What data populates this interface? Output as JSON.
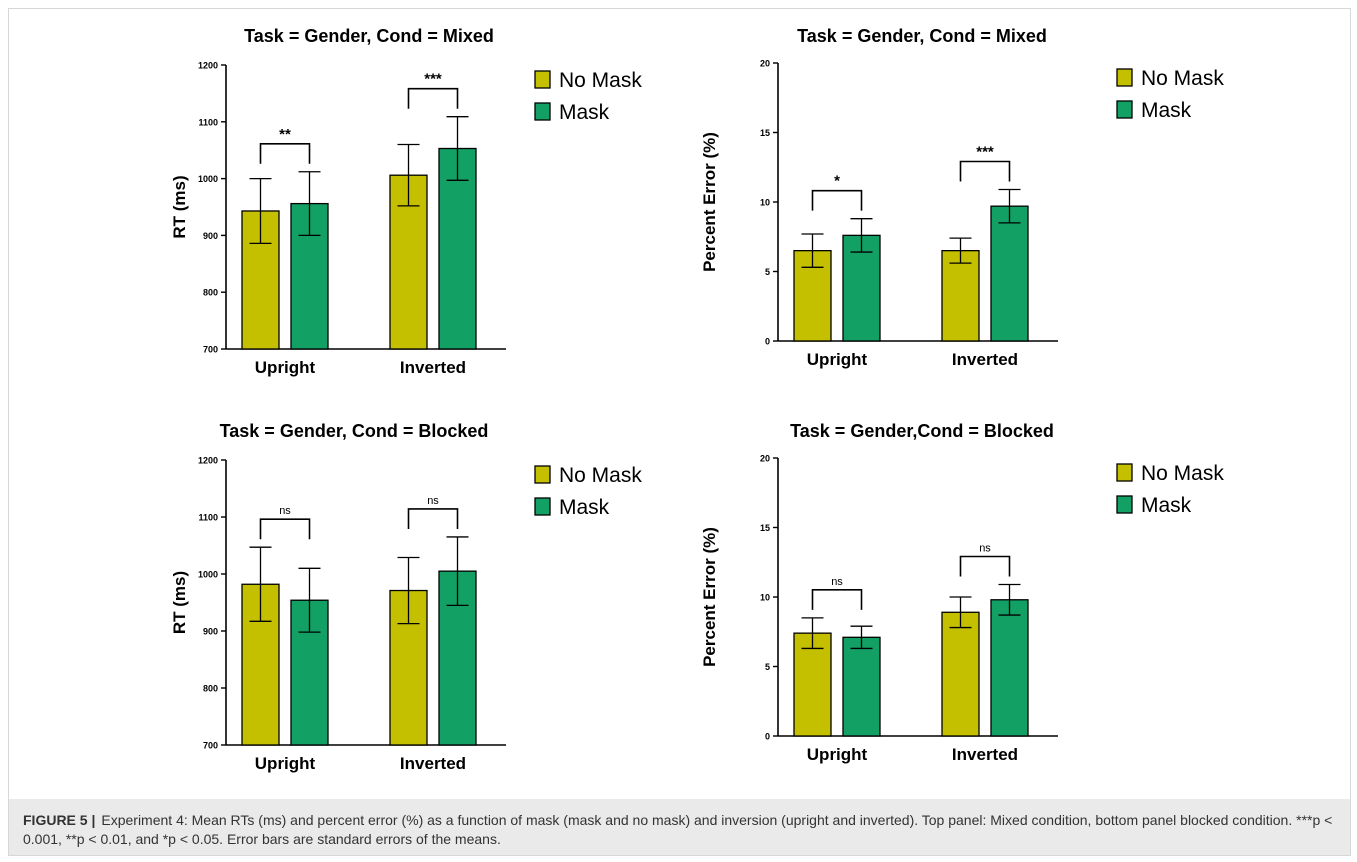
{
  "colors": {
    "no_mask": "#c4c000",
    "mask": "#12a064",
    "axis": "#000000"
  },
  "chart_data": [
    {
      "type": "bar",
      "title": "Task = Gender, Cond = Mixed",
      "ylabel": "RT (ms)",
      "ylim": [
        700,
        1200
      ],
      "yticks": [
        700,
        800,
        900,
        1000,
        1100,
        1200
      ],
      "categories": [
        "Upright",
        "Inverted"
      ],
      "series": [
        {
          "name": "No Mask",
          "values": [
            943,
            1006
          ],
          "errors": [
            57,
            54
          ]
        },
        {
          "name": "Mask",
          "values": [
            956,
            1053
          ],
          "errors": [
            56,
            56
          ]
        }
      ],
      "significance": [
        "**",
        "***"
      ],
      "legend": "top-right"
    },
    {
      "type": "bar",
      "title": "Task = Gender, Cond = Mixed",
      "ylabel": "Percent Error (%)",
      "ylim": [
        0,
        20
      ],
      "yticks": [
        0,
        5,
        10,
        15,
        20
      ],
      "categories": [
        "Upright",
        "Inverted"
      ],
      "series": [
        {
          "name": "No Mask",
          "values": [
            6.5,
            6.5
          ],
          "errors": [
            1.2,
            0.9
          ]
        },
        {
          "name": "Mask",
          "values": [
            7.6,
            9.7
          ],
          "errors": [
            1.2,
            1.2
          ]
        }
      ],
      "significance": [
        "*",
        "***"
      ],
      "legend": "top-right"
    },
    {
      "type": "bar",
      "title": "Task = Gender, Cond = Blocked",
      "ylabel": "RT (ms)",
      "ylim": [
        700,
        1200
      ],
      "yticks": [
        700,
        800,
        900,
        1000,
        1100,
        1200
      ],
      "categories": [
        "Upright",
        "Inverted"
      ],
      "series": [
        {
          "name": "No Mask",
          "values": [
            982,
            971
          ],
          "errors": [
            65,
            58
          ]
        },
        {
          "name": "Mask",
          "values": [
            954,
            1005
          ],
          "errors": [
            56,
            60
          ]
        }
      ],
      "significance": [
        "ns",
        "ns"
      ],
      "legend": "top-right"
    },
    {
      "type": "bar",
      "title": "Task = Gender,Cond = Blocked",
      "ylabel": "Percent Error (%)",
      "ylim": [
        0,
        20
      ],
      "yticks": [
        0,
        5,
        10,
        15,
        20
      ],
      "categories": [
        "Upright",
        "Inverted"
      ],
      "series": [
        {
          "name": "No Mask",
          "values": [
            7.4,
            8.9
          ],
          "errors": [
            1.1,
            1.1
          ]
        },
        {
          "name": "Mask",
          "values": [
            7.1,
            9.8
          ],
          "errors": [
            0.8,
            1.1
          ]
        }
      ],
      "significance": [
        "ns",
        "ns"
      ],
      "legend": "top-right"
    }
  ],
  "caption": {
    "label": "FIGURE 5 |",
    "text": "Experiment 4: Mean RTs (ms) and percent error (%) as a function of mask (mask and no mask) and inversion (upright and inverted). Top panel: Mixed condition, bottom panel blocked condition. ***p < 0.001, **p < 0.01, and *p < 0.05. Error bars are standard errors of the means."
  }
}
